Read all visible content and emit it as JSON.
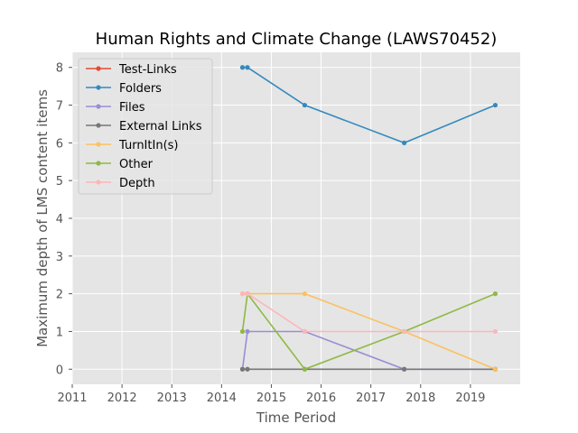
{
  "chart_data": {
    "type": "line",
    "title": "Human Rights and Climate Change (LAWS70452)",
    "xlabel": "Time Period",
    "ylabel": "Maximum depth of LMS content items",
    "xlim": [
      2011,
      2020
    ],
    "ylim": [
      -0.4,
      8.4
    ],
    "x_ticks": [
      "2011",
      "2012",
      "2013",
      "2014",
      "2015",
      "2016",
      "2017",
      "2018",
      "2019"
    ],
    "y_ticks": [
      "0",
      "1",
      "2",
      "3",
      "4",
      "5",
      "6",
      "7",
      "8"
    ],
    "grid": true,
    "legend_position": "upper-left",
    "series": [
      {
        "name": "Test-Links",
        "color": "#E24A33",
        "x": [],
        "y": []
      },
      {
        "name": "Folders",
        "color": "#348ABD",
        "x": [
          2014.42,
          2014.52,
          2015.67,
          2017.67,
          2019.5
        ],
        "y": [
          8,
          8,
          7,
          6,
          7
        ]
      },
      {
        "name": "Files",
        "color": "#988ED5",
        "x": [
          2014.42,
          2014.52,
          2015.67,
          2017.67,
          2019.5
        ],
        "y": [
          0,
          1,
          1,
          0,
          0
        ]
      },
      {
        "name": "External Links",
        "color": "#777777",
        "x": [
          2014.42,
          2014.52,
          2015.67,
          2017.67,
          2019.5
        ],
        "y": [
          0,
          0,
          0,
          0,
          0
        ]
      },
      {
        "name": "TurnItIn(s)",
        "color": "#FBC15E",
        "x": [
          2014.42,
          2014.52,
          2015.67,
          2017.67,
          2019.5
        ],
        "y": [
          2,
          2,
          2,
          1,
          0
        ]
      },
      {
        "name": "Other",
        "color": "#8EBA42",
        "x": [
          2014.42,
          2014.52,
          2015.67,
          2017.67,
          2019.5
        ],
        "y": [
          1,
          2,
          0,
          1,
          2
        ]
      },
      {
        "name": "Depth",
        "color": "#FFB5B8",
        "x": [
          2014.42,
          2014.52,
          2015.67,
          2017.67,
          2019.5
        ],
        "y": [
          2,
          2,
          1,
          1,
          1
        ]
      }
    ]
  }
}
